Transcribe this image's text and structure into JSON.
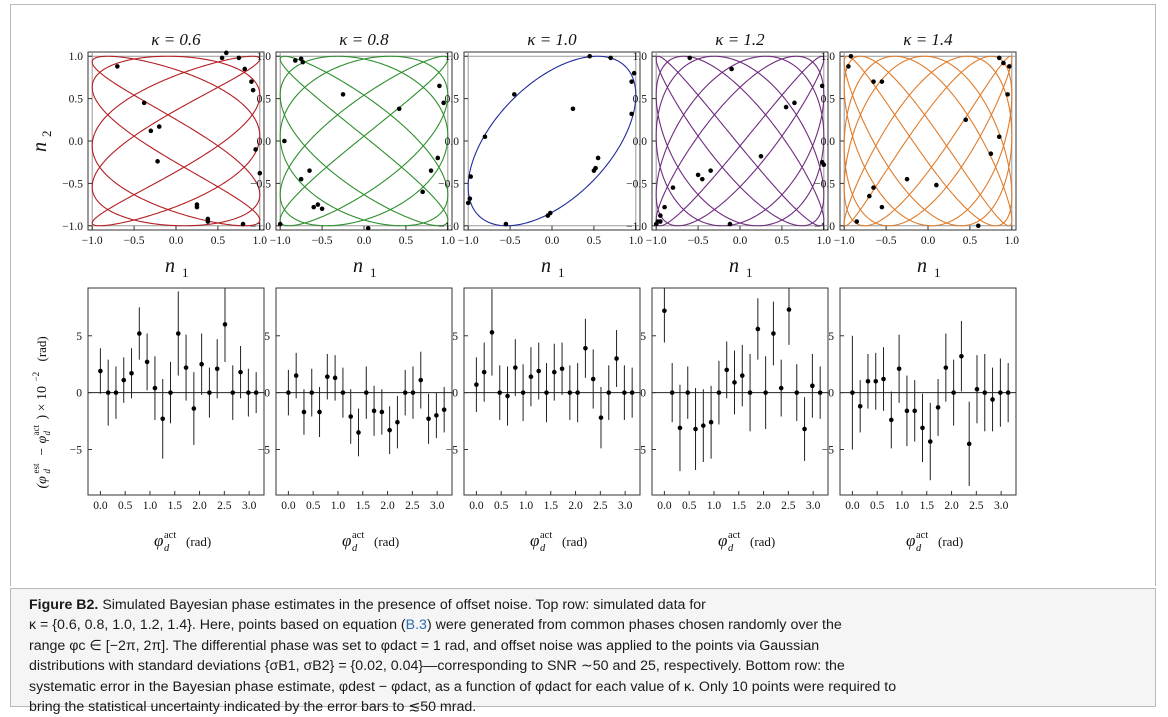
{
  "figure": {
    "top_panels": [
      {
        "title": "κ = 0.6",
        "kappa": 0.6,
        "color": "#b41e22"
      },
      {
        "title": "κ = 0.8",
        "kappa": 0.8,
        "color": "#2d8f2d"
      },
      {
        "title": "κ = 1.0",
        "kappa": 1.0,
        "color": "#1f2b9a"
      },
      {
        "title": "κ = 1.2",
        "kappa": 1.2,
        "color": "#6e2b7e"
      },
      {
        "title": "κ = 1.4",
        "kappa": 1.4,
        "color": "#e07b2a"
      }
    ],
    "top_xlabel": "n1",
    "top_ylabel": "n2",
    "top_ticks_y": [
      "1.0",
      "0.5",
      "0.0",
      "−0.5",
      "−1.0"
    ],
    "top_ticks_x": [
      "−1.0",
      "−0.5",
      "0.0",
      "0.5",
      "1.0"
    ],
    "bottom_ylabel": "(φ_d^est − φ_d^act) × 10^−2 (rad)",
    "bottom_xlabel": "φ_d^act (rad)",
    "bottom_ticks_x": [
      "0.0",
      "0.5",
      "1.0",
      "1.5",
      "2.0",
      "2.5",
      "3.0"
    ],
    "bottom_ticks_y": [
      "5",
      "0",
      "−5"
    ]
  },
  "chart_data": [
    {
      "type": "scatter",
      "title": "κ = 0.6",
      "xlabel": "n1",
      "ylabel": "n2",
      "xlim": [
        -1.05,
        1.05
      ],
      "ylim": [
        -1.05,
        1.05
      ],
      "curve": {
        "type": "lissajous",
        "kappa": 0.6,
        "phase_diff_rad": 1
      },
      "points": [
        [
          -0.7,
          0.88
        ],
        [
          -0.3,
          0.12
        ],
        [
          -0.2,
          0.17
        ],
        [
          0.55,
          0.98
        ],
        [
          0.6,
          1.04
        ],
        [
          0.75,
          0.98
        ],
        [
          0.82,
          0.85
        ],
        [
          0.9,
          0.7
        ],
        [
          0.92,
          0.6
        ],
        [
          0.95,
          -0.1
        ],
        [
          1.0,
          -0.38
        ],
        [
          0.8,
          -0.98
        ],
        [
          0.38,
          -0.92
        ],
        [
          0.38,
          -0.95
        ],
        [
          0.25,
          -0.78
        ],
        [
          0.25,
          -0.75
        ],
        [
          -0.22,
          -0.24
        ],
        [
          -0.38,
          0.45
        ]
      ]
    },
    {
      "type": "scatter",
      "title": "κ = 0.8",
      "xlabel": "n1",
      "ylabel": "n2",
      "xlim": [
        -1.05,
        1.05
      ],
      "ylim": [
        -1.05,
        1.05
      ],
      "curve": {
        "type": "lissajous",
        "kappa": 0.8,
        "phase_diff_rad": 1
      },
      "points": [
        [
          -0.82,
          0.95
        ],
        [
          -0.75,
          0.97
        ],
        [
          -0.73,
          0.93
        ],
        [
          -0.25,
          0.55
        ],
        [
          0.42,
          0.38
        ],
        [
          0.9,
          0.65
        ],
        [
          0.95,
          0.45
        ],
        [
          0.88,
          -0.2
        ],
        [
          0.8,
          -0.35
        ],
        [
          0.7,
          -0.6
        ],
        [
          0.05,
          -1.03
        ],
        [
          -1.0,
          -0.98
        ],
        [
          -0.95,
          0.0
        ],
        [
          -0.75,
          -0.45
        ],
        [
          -0.65,
          -0.35
        ],
        [
          -0.6,
          -0.78
        ],
        [
          -0.55,
          -0.75
        ],
        [
          -0.5,
          -0.8
        ]
      ]
    },
    {
      "type": "scatter",
      "title": "κ = 1.0",
      "xlabel": "n1",
      "ylabel": "n2",
      "xlim": [
        -1.05,
        1.05
      ],
      "ylim": [
        -1.05,
        1.05
      ],
      "curve": {
        "type": "lissajous",
        "kappa": 1.0,
        "phase_diff_rad": 1
      },
      "points": [
        [
          -0.45,
          0.55
        ],
        [
          -0.8,
          0.05
        ],
        [
          -0.97,
          -0.42
        ],
        [
          -0.98,
          -0.68
        ],
        [
          -1.0,
          -0.73
        ],
        [
          -0.55,
          -0.98
        ],
        [
          -0.05,
          -0.88
        ],
        [
          -0.02,
          -0.85
        ],
        [
          0.5,
          -0.35
        ],
        [
          0.52,
          -0.32
        ],
        [
          0.95,
          0.32
        ],
        [
          0.95,
          0.7
        ],
        [
          0.98,
          0.8
        ],
        [
          0.45,
          1.0
        ],
        [
          0.7,
          0.98
        ],
        [
          0.25,
          0.38
        ],
        [
          0.55,
          -0.2
        ]
      ]
    },
    {
      "type": "scatter",
      "title": "κ = 1.2",
      "xlabel": "n1",
      "ylabel": "n2",
      "xlim": [
        -1.05,
        1.05
      ],
      "ylim": [
        -1.05,
        1.05
      ],
      "curve": {
        "type": "lissajous",
        "kappa": 1.2,
        "phase_diff_rad": 1
      },
      "points": [
        [
          -0.6,
          0.98
        ],
        [
          -0.1,
          0.85
        ],
        [
          0.98,
          0.65
        ],
        [
          0.65,
          0.45
        ],
        [
          0.55,
          0.4
        ],
        [
          -0.35,
          -0.35
        ],
        [
          -0.45,
          -0.45
        ],
        [
          -0.5,
          -0.4
        ],
        [
          -0.9,
          -0.78
        ],
        [
          -0.95,
          -0.88
        ],
        [
          -0.95,
          -0.95
        ],
        [
          -0.98,
          -0.95
        ],
        [
          -1.0,
          -0.98
        ],
        [
          -0.12,
          -0.98
        ],
        [
          0.25,
          -0.18
        ],
        [
          0.98,
          -0.25
        ],
        [
          1.0,
          -0.28
        ],
        [
          -0.8,
          -0.55
        ]
      ]
    },
    {
      "type": "scatter",
      "title": "κ = 1.4",
      "xlabel": "n1",
      "ylabel": "n2",
      "xlim": [
        -1.05,
        1.05
      ],
      "ylim": [
        -1.05,
        1.05
      ],
      "curve": {
        "type": "lissajous",
        "kappa": 1.4,
        "phase_diff_rad": 1
      },
      "points": [
        [
          -0.95,
          0.88
        ],
        [
          -0.92,
          1.0
        ],
        [
          0.85,
          0.98
        ],
        [
          0.9,
          0.92
        ],
        [
          0.97,
          0.88
        ],
        [
          0.95,
          0.55
        ],
        [
          0.85,
          0.05
        ],
        [
          0.75,
          -0.15
        ],
        [
          0.45,
          0.25
        ],
        [
          0.1,
          -0.52
        ],
        [
          -0.25,
          -0.45
        ],
        [
          -0.65,
          -0.55
        ],
        [
          -0.55,
          -0.78
        ],
        [
          -0.7,
          -0.65
        ],
        [
          -0.85,
          -0.95
        ],
        [
          -0.65,
          0.7
        ],
        [
          -0.55,
          0.7
        ],
        [
          0.6,
          -1.0
        ]
      ]
    },
    {
      "type": "scatter",
      "title": "κ = 0.6",
      "xlabel": "φ_d^act (rad)",
      "ylabel": "(φ_d^est − φ_d^act) × 10^−2 (rad)",
      "xlim": [
        -0.25,
        3.3
      ],
      "ylim": [
        -9,
        9.2
      ],
      "x": [
        0.0,
        0.157,
        0.314,
        0.471,
        0.628,
        0.785,
        0.942,
        1.1,
        1.257,
        1.414,
        1.571,
        1.728,
        1.885,
        2.042,
        2.199,
        2.356,
        2.513,
        2.67,
        2.827,
        2.985,
        3.142
      ],
      "values": [
        1.9,
        0.0,
        0.0,
        1.1,
        1.7,
        5.2,
        2.7,
        0.4,
        -2.3,
        0.0,
        5.2,
        2.2,
        -1.4,
        2.5,
        0.0,
        2.1,
        6.0,
        0.0,
        1.8,
        0.0,
        0.0
      ],
      "errors": [
        2.0,
        2.9,
        2.3,
        2.0,
        2.2,
        2.3,
        2.5,
        2.8,
        3.5,
        2.7,
        3.7,
        2.9,
        3.2,
        2.7,
        2.2,
        2.6,
        3.3,
        2.4,
        2.3,
        2.1,
        1.8
      ]
    },
    {
      "type": "scatter",
      "title": "κ = 0.8",
      "xlabel": "φ_d^act (rad)",
      "ylabel": "(φ_d^est − φ_d^act) × 10^−2 (rad)",
      "xlim": [
        -0.25,
        3.3
      ],
      "ylim": [
        -9,
        9.2
      ],
      "x": [
        0.0,
        0.157,
        0.314,
        0.471,
        0.628,
        0.785,
        0.942,
        1.1,
        1.257,
        1.414,
        1.571,
        1.728,
        1.885,
        2.042,
        2.199,
        2.356,
        2.513,
        2.67,
        2.827,
        2.985,
        3.142
      ],
      "values": [
        0.0,
        1.5,
        -1.7,
        0.0,
        -1.7,
        1.4,
        1.3,
        0.0,
        -2.1,
        -3.5,
        0.0,
        -1.6,
        -1.7,
        -3.3,
        -2.6,
        0.0,
        0.0,
        1.1,
        -2.3,
        -2.0,
        -1.5
      ],
      "errors": [
        2.0,
        2.0,
        2.0,
        2.1,
        2.2,
        2.0,
        2.0,
        2.2,
        2.4,
        2.1,
        2.3,
        2.2,
        2.0,
        2.1,
        2.3,
        2.0,
        2.3,
        2.5,
        2.2,
        2.0,
        2.0
      ]
    },
    {
      "type": "scatter",
      "title": "κ = 1.0",
      "xlabel": "φ_d^act (rad)",
      "ylabel": "(φ_d^est − φ_d^act) × 10^−2 (rad)",
      "xlim": [
        -0.25,
        3.3
      ],
      "ylim": [
        -9,
        9.2
      ],
      "x": [
        0.0,
        0.157,
        0.314,
        0.471,
        0.628,
        0.785,
        0.942,
        1.1,
        1.257,
        1.414,
        1.571,
        1.728,
        1.885,
        2.042,
        2.199,
        2.356,
        2.513,
        2.67,
        2.827,
        2.985,
        3.142
      ],
      "values": [
        0.7,
        1.8,
        5.3,
        0.0,
        -0.3,
        2.2,
        0.0,
        1.4,
        1.9,
        0.0,
        1.8,
        2.1,
        0.0,
        0.0,
        3.9,
        1.2,
        -2.2,
        0.0,
        3.0,
        0.0,
        0.0
      ],
      "errors": [
        2.4,
        2.6,
        3.8,
        2.4,
        2.6,
        2.5,
        2.5,
        2.6,
        2.5,
        2.6,
        2.5,
        2.3,
        2.4,
        2.6,
        2.6,
        2.6,
        2.7,
        2.4,
        2.5,
        2.4,
        2.2
      ]
    },
    {
      "type": "scatter",
      "title": "κ = 1.2",
      "xlabel": "φ_d^act (rad)",
      "ylabel": "(φ_d^est − φ_d^act) × 10^−2 (rad)",
      "xlim": [
        -0.25,
        3.3
      ],
      "ylim": [
        -9,
        9.2
      ],
      "x": [
        0.0,
        0.157,
        0.314,
        0.471,
        0.628,
        0.785,
        0.942,
        1.1,
        1.257,
        1.414,
        1.571,
        1.728,
        1.885,
        2.042,
        2.199,
        2.356,
        2.513,
        2.67,
        2.827,
        2.985,
        3.142
      ],
      "values": [
        7.2,
        0.0,
        -3.1,
        0.0,
        -3.2,
        -2.9,
        -2.6,
        0.0,
        2.0,
        0.9,
        1.5,
        0.0,
        5.6,
        0.0,
        5.2,
        0.4,
        7.3,
        0.0,
        -3.2,
        0.6,
        0.0
      ],
      "errors": [
        2.8,
        2.6,
        3.8,
        2.3,
        3.6,
        3.2,
        3.2,
        2.8,
        2.5,
        2.8,
        2.7,
        3.4,
        2.7,
        3.2,
        2.8,
        2.5,
        3.1,
        2.5,
        2.8,
        2.8,
        2.3
      ]
    },
    {
      "type": "scatter",
      "title": "κ = 1.4",
      "xlabel": "φ_d^act (rad)",
      "ylabel": "(φ_d^est − φ_d^act) × 10^−2 (rad)",
      "xlim": [
        -0.25,
        3.3
      ],
      "ylim": [
        -9,
        9.2
      ],
      "x": [
        0.0,
        0.157,
        0.314,
        0.471,
        0.628,
        0.785,
        0.942,
        1.1,
        1.257,
        1.414,
        1.571,
        1.728,
        1.885,
        2.042,
        2.199,
        2.356,
        2.513,
        2.67,
        2.827,
        2.985,
        3.142
      ],
      "values": [
        0.0,
        -1.2,
        1.0,
        1.0,
        1.2,
        -2.4,
        2.1,
        -1.6,
        -1.6,
        -3.1,
        -4.3,
        -1.3,
        2.2,
        0.0,
        3.2,
        -4.5,
        0.3,
        0.0,
        -0.6,
        0.0,
        0.0
      ],
      "errors": [
        5.0,
        2.3,
        2.4,
        2.5,
        2.8,
        2.5,
        3.0,
        3.1,
        2.7,
        3.0,
        3.4,
        2.5,
        3.0,
        2.9,
        3.1,
        3.7,
        3.0,
        3.4,
        2.8,
        3.0,
        2.6
      ]
    }
  ],
  "caption": {
    "label": "Figure B2.",
    "line1": " Simulated Bayesian phase estimates in the presence of offset noise. Top row: simulated data for",
    "line2a": "κ = {0.6, 0.8, 1.0, 1.2, 1.4}. Here, points based on equation (",
    "line2_link": "B.3",
    "line2b": ") were generated from common phases chosen randomly over the",
    "line3": "range φc ∈ [−2π, 2π]. The differential phase was set to φdact = 1 rad, and offset noise was applied to the points via Gaussian",
    "line4": "distributions with standard deviations {σB1, σB2} = {0.02, 0.04}—corresponding to SNR ∼50 and 25, respectively. Bottom row: the",
    "line5": "systematic error in the Bayesian phase estimate, φdest − φdact, as a function of φdact for each value of κ. Only 10 points were required to",
    "line6": "bring the statistical uncertainty indicated by the error bars to ≲50 mrad."
  }
}
